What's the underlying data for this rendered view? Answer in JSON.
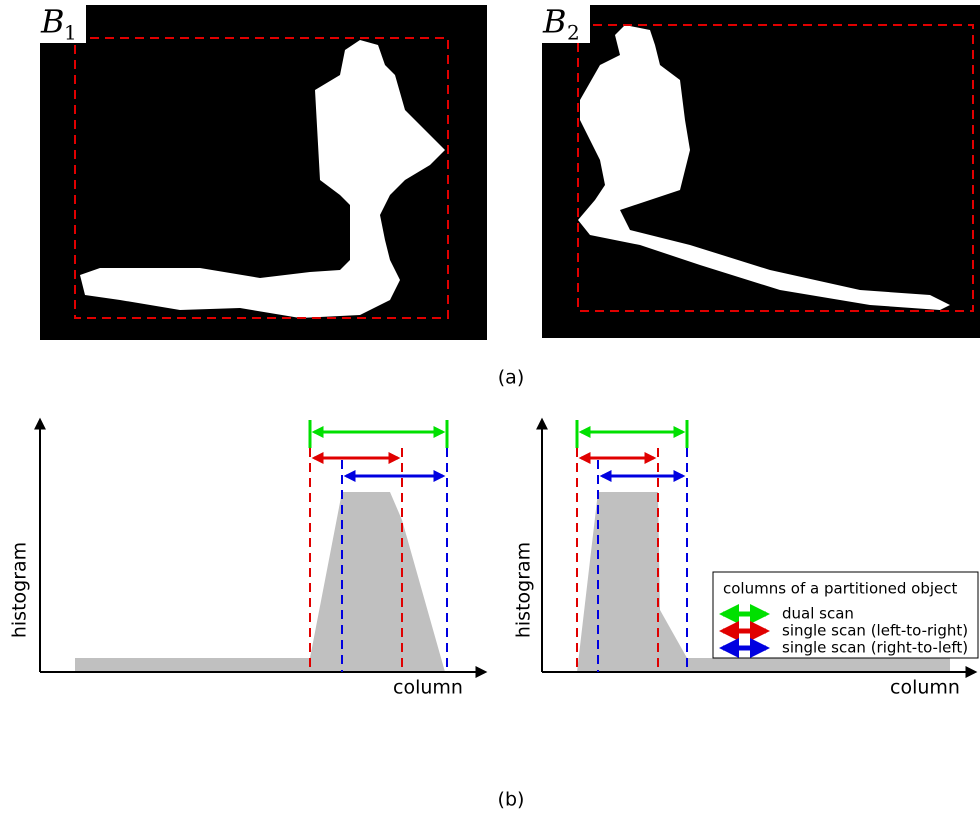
{
  "panel_a": {
    "images": [
      {
        "letter": "B",
        "subscript": "1"
      },
      {
        "letter": "B",
        "subscript": "2"
      }
    ],
    "caption": "(a)"
  },
  "panel_b": {
    "y_axis_label": "histogram",
    "x_axis_label": "column",
    "caption": "(b)",
    "legend": {
      "title": "columns of a partitioned object",
      "entries": [
        "dual scan",
        "single scan (left-to-right)",
        "single scan (right-to-left)"
      ]
    }
  }
}
